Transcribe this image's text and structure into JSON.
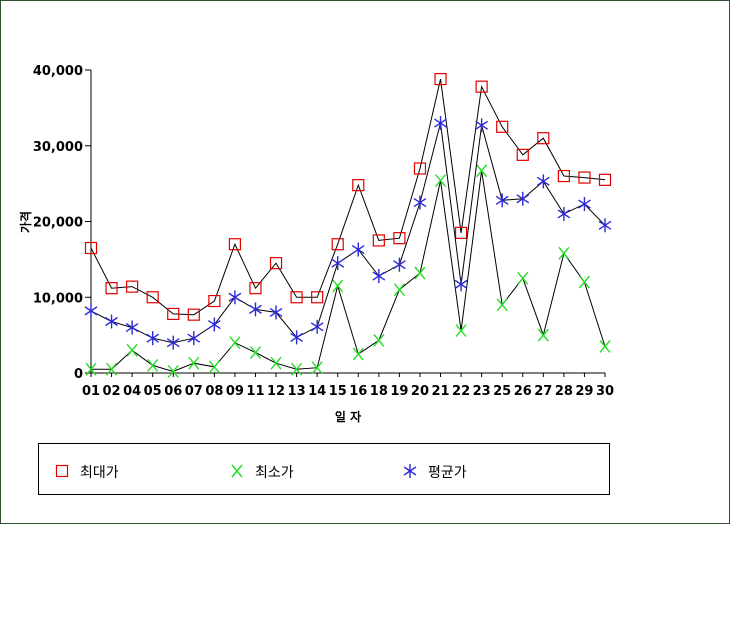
{
  "chart_data": {
    "type": "line",
    "title": "",
    "xlabel": "일   자",
    "ylabel": "가격",
    "categories": [
      "01",
      "02",
      "04",
      "05",
      "06",
      "07",
      "08",
      "09",
      "11",
      "12",
      "13",
      "14",
      "15",
      "16",
      "18",
      "19",
      "20",
      "21",
      "22",
      "23",
      "25",
      "26",
      "27",
      "28",
      "29",
      "30"
    ],
    "ylim": [
      0,
      40000
    ],
    "yticks": [
      0,
      10000,
      20000,
      30000,
      40000
    ],
    "ytick_labels": [
      "0",
      "10,000",
      "20,000",
      "30,000",
      "40,000"
    ],
    "grid": false,
    "legend_position": "bottom",
    "series": [
      {
        "name": "최대가",
        "marker": "square",
        "color": "#e00000",
        "values": [
          16500,
          11200,
          11400,
          10000,
          7800,
          7700,
          9500,
          17000,
          11200,
          14500,
          10000,
          10000,
          17000,
          24800,
          17500,
          17800,
          27000,
          38800,
          18500,
          37800,
          32500,
          28800,
          31000,
          26000,
          25800,
          25500
        ]
      },
      {
        "name": "최소가",
        "marker": "x",
        "color": "#22dd22",
        "values": [
          500,
          500,
          3000,
          1000,
          200,
          1300,
          800,
          4000,
          2700,
          1300,
          500,
          700,
          11500,
          2500,
          4300,
          11000,
          13200,
          25400,
          5600,
          26700,
          9000,
          12500,
          5000,
          15800,
          12000,
          3500
        ]
      },
      {
        "name": "평균가",
        "marker": "asterisk",
        "color": "#2a2ad8",
        "values": [
          8200,
          6800,
          6000,
          4600,
          4000,
          4600,
          6400,
          10000,
          8400,
          8000,
          4700,
          6100,
          14500,
          16300,
          12800,
          14300,
          22500,
          33000,
          11700,
          32700,
          22800,
          23000,
          25300,
          21000,
          22300,
          19500
        ]
      }
    ]
  }
}
